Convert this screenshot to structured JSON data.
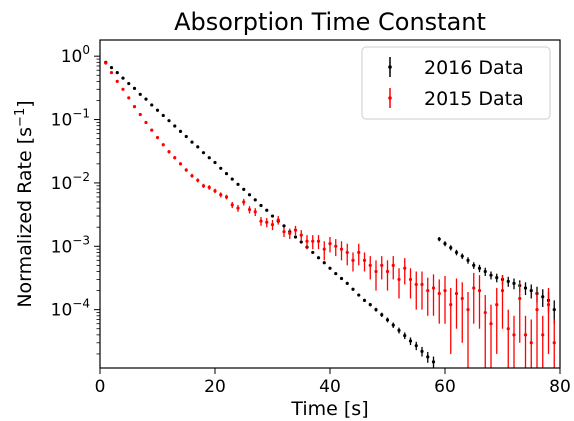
{
  "chart_data": {
    "type": "scatter",
    "title": "Absorption Time Constant",
    "xlabel": "Time [s]",
    "ylabel_prefix": "Normalized Rate [s",
    "ylabel_sup": "−1",
    "ylabel_suffix": "]",
    "x_scale": "linear",
    "y_scale": "log",
    "xlim": [
      0,
      80
    ],
    "ylim": [
      1.2e-05,
      1.8
    ],
    "x_ticks": [
      {
        "value": 0,
        "label": "0"
      },
      {
        "value": 20,
        "label": "20"
      },
      {
        "value": 40,
        "label": "40"
      },
      {
        "value": 60,
        "label": "60"
      },
      {
        "value": 80,
        "label": "80"
      }
    ],
    "y_ticks": [
      {
        "value": 1,
        "base": "10",
        "exp": "0"
      },
      {
        "value": 0.1,
        "base": "10",
        "exp": "−1"
      },
      {
        "value": 0.01,
        "base": "10",
        "exp": "−2"
      },
      {
        "value": 0.001,
        "base": "10",
        "exp": "−3"
      },
      {
        "value": 0.0001,
        "base": "10",
        "exp": "−4"
      }
    ],
    "grid": false,
    "legend_position": "upper right",
    "series": [
      {
        "name": "2016 Data",
        "color": "#000000",
        "x": [
          1,
          2,
          3,
          4,
          5,
          6,
          7,
          8,
          9,
          10,
          11,
          12,
          13,
          14,
          15,
          16,
          17,
          18,
          19,
          20,
          21,
          22,
          23,
          24,
          25,
          26,
          27,
          28,
          29,
          30,
          31,
          32,
          33,
          34,
          35,
          36,
          37,
          38,
          39,
          40,
          41,
          42,
          43,
          44,
          45,
          46,
          47,
          48,
          49,
          50,
          51,
          52,
          53,
          54,
          55,
          56,
          57,
          58,
          59,
          60,
          61,
          62,
          63,
          64,
          65,
          66,
          67,
          68,
          69,
          70,
          71,
          72,
          73,
          74,
          75,
          76,
          77,
          78,
          79
        ],
        "y": [
          0.8,
          0.66,
          0.55,
          0.45,
          0.37,
          0.31,
          0.25,
          0.21,
          0.17,
          0.14,
          0.116,
          0.096,
          0.079,
          0.065,
          0.054,
          0.044,
          0.037,
          0.03,
          0.025,
          0.021,
          0.017,
          0.014,
          0.0115,
          0.0095,
          0.0079,
          0.0065,
          0.0054,
          0.0044,
          0.0037,
          0.003,
          0.0025,
          0.0021,
          0.0017,
          0.0014,
          0.00117,
          0.00097,
          0.0008,
          0.00066,
          0.00055,
          0.00045,
          0.00037,
          0.00031,
          0.00026,
          0.00021,
          0.00017,
          0.00014,
          0.00012,
          0.0001,
          8.3e-05,
          6.9e-05,
          5.7e-05,
          4.7e-05,
          3.9e-05,
          3.2e-05,
          2.7e-05,
          2.2e-05,
          1.8e-05,
          1.5e-05,
          0.0013,
          0.0011,
          0.00095,
          0.0008,
          0.0007,
          0.0006,
          0.0005,
          0.00045,
          0.0004,
          0.00035,
          0.00032,
          0.0003,
          0.00028,
          0.00026,
          0.00024,
          0.00022,
          0.0002,
          0.00018,
          0.00016,
          0.00014,
          0.0001
        ],
        "yerr": [
          0.003,
          0.003,
          0.002,
          0.002,
          0.002,
          0.002,
          0.0015,
          0.0012,
          0.001,
          0.0009,
          0.0008,
          0.0007,
          0.0006,
          0.0005,
          0.0004,
          0.0004,
          0.0003,
          0.0003,
          0.00025,
          0.0002,
          0.00018,
          0.00015,
          0.00013,
          0.00011,
          0.0001,
          9e-05,
          8e-05,
          7e-05,
          6e-05,
          5e-05,
          4.5e-05,
          4e-05,
          3.5e-05,
          3e-05,
          2.7e-05,
          2.4e-05,
          2.1e-05,
          1.9e-05,
          1.7e-05,
          1.5e-05,
          1.3e-05,
          1.2e-05,
          1.1e-05,
          1e-05,
          9e-06,
          8e-06,
          7.5e-06,
          7e-06,
          6.5e-06,
          6e-06,
          5.5e-06,
          5e-06,
          4.7e-06,
          4.4e-06,
          4.1e-06,
          3.8e-06,
          3.5e-06,
          3.2e-06,
          0.0001,
          0.0001,
          9e-05,
          8e-05,
          7e-05,
          7e-05,
          6e-05,
          6e-05,
          6e-05,
          5e-05,
          5e-05,
          5e-05,
          5e-05,
          5e-05,
          5e-05,
          5e-05,
          5e-05,
          5e-05,
          5e-05,
          5e-05,
          4e-05
        ]
      },
      {
        "name": "2015 Data",
        "color": "#ff0000",
        "x": [
          1,
          2,
          3,
          4,
          5,
          6,
          7,
          8,
          9,
          10,
          11,
          12,
          13,
          14,
          15,
          16,
          17,
          18,
          19,
          20,
          21,
          22,
          23,
          24,
          25,
          26,
          27,
          28,
          29,
          30,
          31,
          32,
          33,
          34,
          35,
          36,
          37,
          38,
          39,
          40,
          41,
          42,
          43,
          44,
          45,
          46,
          47,
          48,
          49,
          50,
          51,
          52,
          53,
          54,
          55,
          56,
          57,
          58,
          59,
          60,
          61,
          62,
          63,
          64,
          65,
          66,
          67,
          68,
          69,
          70,
          71,
          72,
          73,
          74,
          75,
          76,
          77,
          78,
          79
        ],
        "y": [
          0.78,
          0.55,
          0.4,
          0.3,
          0.22,
          0.16,
          0.12,
          0.09,
          0.068,
          0.052,
          0.04,
          0.031,
          0.025,
          0.02,
          0.016,
          0.013,
          0.011,
          0.009,
          0.0085,
          0.0075,
          0.0065,
          0.006,
          0.0045,
          0.004,
          0.005,
          0.0038,
          0.0035,
          0.0025,
          0.0024,
          0.0022,
          0.0026,
          0.0017,
          0.0016,
          0.0018,
          0.0015,
          0.0012,
          0.0012,
          0.0012,
          0.0009,
          0.0011,
          0.001,
          0.0009,
          0.0008,
          0.0006,
          0.0008,
          0.0006,
          0.0005,
          0.0004,
          0.0005,
          0.0004,
          0.0005,
          0.0003,
          0.00045,
          0.0003,
          0.00025,
          0.00025,
          0.0002,
          0.00022,
          0.00018,
          0.0002,
          0.00012,
          0.00018,
          0.00015,
          0.0001,
          0.00022,
          0.0002,
          9e-05,
          6e-05,
          0.00012,
          0.0002,
          5e-05,
          4e-05,
          0.00015,
          4e-05,
          3e-05,
          0.0001,
          4e-05,
          0.00012,
          3e-05
        ],
        "yerr": [
          0.02,
          0.015,
          0.012,
          0.01,
          0.008,
          0.006,
          0.005,
          0.004,
          0.003,
          0.003,
          0.002,
          0.002,
          0.0015,
          0.0012,
          0.001,
          0.0009,
          0.0008,
          0.0007,
          0.0007,
          0.0006,
          0.0006,
          0.0005,
          0.0005,
          0.0005,
          0.0006,
          0.0005,
          0.0005,
          0.0004,
          0.0004,
          0.0004,
          0.0004,
          0.0003,
          0.0003,
          0.0003,
          0.0003,
          0.0003,
          0.0003,
          0.0003,
          0.0003,
          0.0003,
          0.0003,
          0.0003,
          0.0003,
          0.0002,
          0.0003,
          0.0002,
          0.0002,
          0.0002,
          0.0002,
          0.0002,
          0.0002,
          0.00015,
          0.0002,
          0.00015,
          0.00015,
          0.00015,
          0.00012,
          0.00014,
          0.00012,
          0.00014,
          0.0001,
          0.00013,
          0.00012,
          9e-05,
          0.00016,
          0.00015,
          8e-05,
          6e-05,
          0.0001,
          0.00015,
          5e-05,
          4e-05,
          0.00012,
          4e-05,
          4e-05,
          9e-05,
          4e-05,
          0.0001,
          4e-05
        ]
      }
    ]
  }
}
